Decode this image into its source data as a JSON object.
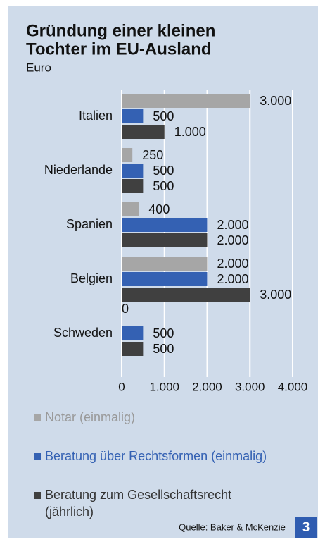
{
  "page_number": "3",
  "chart_data": {
    "type": "hbar",
    "title": [
      "Gründung einer kleinen",
      "Tochter im EU-Ausland"
    ],
    "subtitle": "Euro",
    "source": "Quelle: Baker & McKenzie",
    "categories": [
      "Italien",
      "Niederlande",
      "Spanien",
      "Belgien",
      "Schweden"
    ],
    "series": [
      {
        "name": "Notar (einmalig)",
        "color": "#a6a6a6",
        "label_color": "#999999",
        "values": [
          3000,
          250,
          400,
          2000,
          0
        ],
        "value_labels": [
          "3.000",
          "250",
          "400",
          "2.000",
          "0"
        ]
      },
      {
        "name": "Beratung über Rechtsformen (einmalig)",
        "color": "#3461b3",
        "label_color": "#3461b3",
        "values": [
          500,
          500,
          2000,
          2000,
          500
        ],
        "value_labels": [
          "500",
          "500",
          "2.000",
          "2.000",
          "500"
        ]
      },
      {
        "name": "Beratung zum Gesellschaftsrecht (jährlich)",
        "color": "#404040",
        "label_color": "#333333",
        "values": [
          1000,
          500,
          2000,
          3000,
          500
        ],
        "value_labels": [
          "1.000",
          "500",
          "2.000",
          "3.000",
          "500"
        ]
      }
    ],
    "xlim": [
      0,
      4000
    ],
    "xticks": [
      0,
      {
        "value": 1000,
        "label": "1.000"
      },
      {
        "value": 2000,
        "label": "2.000"
      },
      {
        "value": 3000,
        "label": "3.000"
      },
      {
        "value": 4000,
        "label": "4.000"
      }
    ],
    "grid": true
  }
}
